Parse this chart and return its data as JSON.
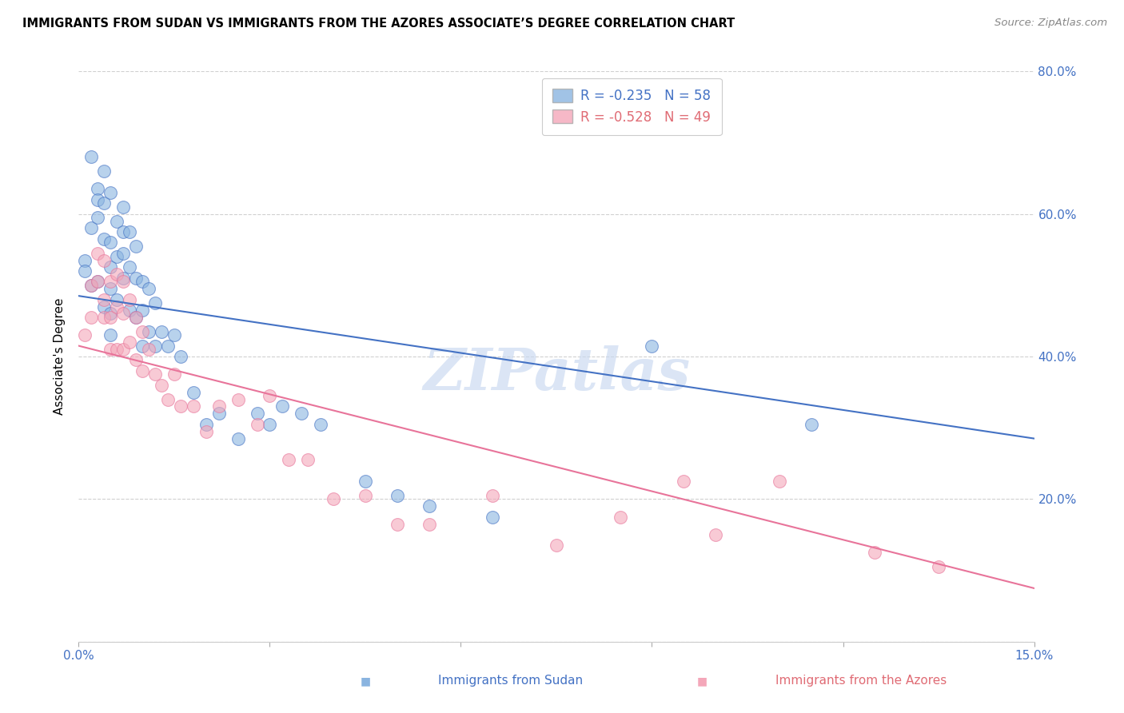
{
  "title": "IMMIGRANTS FROM SUDAN VS IMMIGRANTS FROM THE AZORES ASSOCIATE’S DEGREE CORRELATION CHART",
  "source": "Source: ZipAtlas.com",
  "ylabel": "Associate's Degree",
  "xlim": [
    0.0,
    0.15
  ],
  "ylim": [
    0.0,
    0.8
  ],
  "legend_blue_r": "-0.235",
  "legend_blue_n": "58",
  "legend_pink_r": "-0.528",
  "legend_pink_n": "49",
  "legend_blue_label": "Immigrants from Sudan",
  "legend_pink_label": "Immigrants from the Azores",
  "blue_color": "#8ab4e0",
  "pink_color": "#f4a7b9",
  "blue_line_color": "#4472c4",
  "pink_line_color": "#e8749a",
  "watermark": "ZIPatlas",
  "blue_line_x0": 0.0,
  "blue_line_y0": 0.485,
  "blue_line_x1": 0.15,
  "blue_line_y1": 0.285,
  "pink_line_x0": 0.0,
  "pink_line_y0": 0.415,
  "pink_line_x1": 0.15,
  "pink_line_y1": 0.075,
  "sudan_x": [
    0.001,
    0.001,
    0.002,
    0.002,
    0.002,
    0.003,
    0.003,
    0.003,
    0.003,
    0.004,
    0.004,
    0.004,
    0.004,
    0.005,
    0.005,
    0.005,
    0.005,
    0.005,
    0.005,
    0.006,
    0.006,
    0.006,
    0.007,
    0.007,
    0.007,
    0.007,
    0.008,
    0.008,
    0.008,
    0.009,
    0.009,
    0.009,
    0.01,
    0.01,
    0.01,
    0.011,
    0.011,
    0.012,
    0.012,
    0.013,
    0.014,
    0.015,
    0.016,
    0.018,
    0.02,
    0.022,
    0.025,
    0.028,
    0.03,
    0.032,
    0.035,
    0.038,
    0.045,
    0.05,
    0.055,
    0.065,
    0.09,
    0.115
  ],
  "sudan_y": [
    0.535,
    0.52,
    0.68,
    0.58,
    0.5,
    0.635,
    0.62,
    0.595,
    0.505,
    0.66,
    0.615,
    0.565,
    0.47,
    0.63,
    0.56,
    0.525,
    0.495,
    0.46,
    0.43,
    0.59,
    0.54,
    0.48,
    0.61,
    0.575,
    0.545,
    0.51,
    0.575,
    0.525,
    0.465,
    0.555,
    0.51,
    0.455,
    0.505,
    0.465,
    0.415,
    0.495,
    0.435,
    0.475,
    0.415,
    0.435,
    0.415,
    0.43,
    0.4,
    0.35,
    0.305,
    0.32,
    0.285,
    0.32,
    0.305,
    0.33,
    0.32,
    0.305,
    0.225,
    0.205,
    0.19,
    0.175,
    0.415,
    0.305
  ],
  "azores_x": [
    0.001,
    0.002,
    0.002,
    0.003,
    0.003,
    0.004,
    0.004,
    0.004,
    0.005,
    0.005,
    0.005,
    0.006,
    0.006,
    0.006,
    0.007,
    0.007,
    0.007,
    0.008,
    0.008,
    0.009,
    0.009,
    0.01,
    0.01,
    0.011,
    0.012,
    0.013,
    0.014,
    0.015,
    0.016,
    0.018,
    0.02,
    0.022,
    0.025,
    0.028,
    0.03,
    0.033,
    0.036,
    0.04,
    0.045,
    0.05,
    0.055,
    0.065,
    0.075,
    0.085,
    0.095,
    0.1,
    0.11,
    0.125,
    0.135
  ],
  "azores_y": [
    0.43,
    0.5,
    0.455,
    0.545,
    0.505,
    0.535,
    0.48,
    0.455,
    0.505,
    0.455,
    0.41,
    0.515,
    0.47,
    0.41,
    0.505,
    0.46,
    0.41,
    0.48,
    0.42,
    0.455,
    0.395,
    0.435,
    0.38,
    0.41,
    0.375,
    0.36,
    0.34,
    0.375,
    0.33,
    0.33,
    0.295,
    0.33,
    0.34,
    0.305,
    0.345,
    0.255,
    0.255,
    0.2,
    0.205,
    0.165,
    0.165,
    0.205,
    0.135,
    0.175,
    0.225,
    0.15,
    0.225,
    0.125,
    0.105
  ]
}
